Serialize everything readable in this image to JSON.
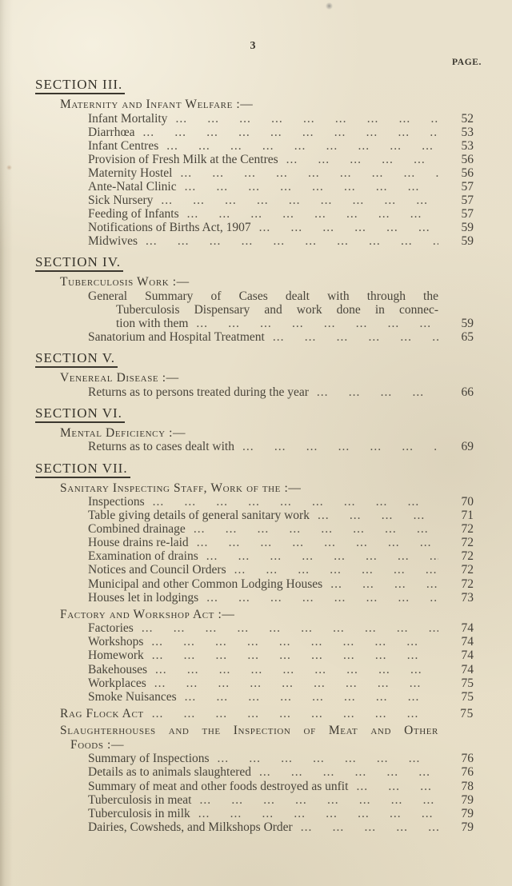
{
  "page": {
    "folio": "3",
    "page_column_header": "PAGE."
  },
  "colors": {
    "paper": "#e8e0cb",
    "ink": "#49453b",
    "heading_ink": "#35322a",
    "rule": "#3b372e"
  },
  "leader_unit": "...",
  "sections": [
    {
      "heading": "SECTION III.",
      "entries": [
        {
          "kind": "group",
          "title": "Maternity and Infant Welfare :—"
        },
        {
          "kind": "item",
          "label": "Infant Mortality",
          "page": "52"
        },
        {
          "kind": "item",
          "label": "Diarrhœa",
          "page": "53"
        },
        {
          "kind": "item",
          "label": "Infant Centres",
          "page": "53"
        },
        {
          "kind": "item",
          "label": "Provision of Fresh Milk at the Centres",
          "page": "56"
        },
        {
          "kind": "item",
          "label": "Maternity Hostel",
          "page": "56"
        },
        {
          "kind": "item",
          "label": "Ante-Natal Clinic",
          "page": "57"
        },
        {
          "kind": "item",
          "label": "Sick Nursery",
          "page": "57"
        },
        {
          "kind": "item",
          "label": "Feeding of Infants",
          "page": "57"
        },
        {
          "kind": "item",
          "label": "Notifications of Births Act, 1907",
          "page": "59"
        },
        {
          "kind": "item",
          "label": "Midwives",
          "page": "59"
        }
      ]
    },
    {
      "heading": "SECTION IV.",
      "entries": [
        {
          "kind": "group",
          "title": "Tuberculosis Work :—"
        },
        {
          "kind": "item",
          "pre_lines": [
            "General Summary of Cases dealt with through the",
            "Tuberculosis Dispensary and work done in connec-"
          ],
          "label": "tion with them",
          "page": "59",
          "cont": true
        },
        {
          "kind": "item",
          "label": "Sanatorium and Hospital Treatment",
          "page": "65"
        }
      ]
    },
    {
      "heading": "SECTION V.",
      "entries": [
        {
          "kind": "group",
          "title": "Venereal Disease :—"
        },
        {
          "kind": "item",
          "label": "Returns as to persons treated during the year",
          "page": "66"
        }
      ]
    },
    {
      "heading": "SECTION VI.",
      "entries": [
        {
          "kind": "group",
          "title": "Mental Deficiency :—"
        },
        {
          "kind": "item",
          "label": "Returns as to cases dealt with",
          "page": "69"
        }
      ]
    },
    {
      "heading": "SECTION VII.",
      "entries": [
        {
          "kind": "group",
          "title": "Sanitary Inspecting Staff, Work of the :—"
        },
        {
          "kind": "item",
          "label": "Inspections",
          "page": "70"
        },
        {
          "kind": "item",
          "label": "Table giving details of general sanitary work",
          "page": "71"
        },
        {
          "kind": "item",
          "label": "Combined drainage",
          "page": "72"
        },
        {
          "kind": "item",
          "label": "House drains re-laid",
          "page": "72"
        },
        {
          "kind": "item",
          "label": "Examination of drains",
          "page": "72"
        },
        {
          "kind": "item",
          "label": "Notices and Council Orders",
          "page": "72"
        },
        {
          "kind": "item",
          "label": "Municipal and other Common Lodging Houses",
          "page": "72"
        },
        {
          "kind": "item",
          "label": "Houses let in lodgings",
          "page": "73"
        },
        {
          "kind": "group",
          "title": "Factory and Workshop Act :—"
        },
        {
          "kind": "item",
          "label": "Factories",
          "page": "74"
        },
        {
          "kind": "item",
          "label": "Workshops",
          "page": "74"
        },
        {
          "kind": "item",
          "label": "Homework",
          "page": "74"
        },
        {
          "kind": "item",
          "label": "Bakehouses",
          "page": "74"
        },
        {
          "kind": "item",
          "label": "Workplaces",
          "page": "75"
        },
        {
          "kind": "item",
          "label": "Smoke Nuisances",
          "page": "75"
        },
        {
          "kind": "group",
          "title": "Rag Flock Act",
          "page": "75"
        },
        {
          "kind": "group",
          "title_lines": [
            "Slaughterhouses and the Inspection of Meat and Other",
            "Foods :—"
          ]
        },
        {
          "kind": "item",
          "label": "Summary of Inspections",
          "page": "76"
        },
        {
          "kind": "item",
          "label": "Details as to animals slaughtered",
          "page": "76"
        },
        {
          "kind": "item",
          "label": "Summary of meat and other foods destroyed as unfit",
          "page": "78"
        },
        {
          "kind": "item",
          "label": "Tuberculosis in meat",
          "page": "79"
        },
        {
          "kind": "item",
          "label": "Tuberculosis in milk",
          "page": "79"
        },
        {
          "kind": "item",
          "label": "Dairies, Cowsheds, and Milkshops Order",
          "page": "79"
        }
      ]
    }
  ]
}
